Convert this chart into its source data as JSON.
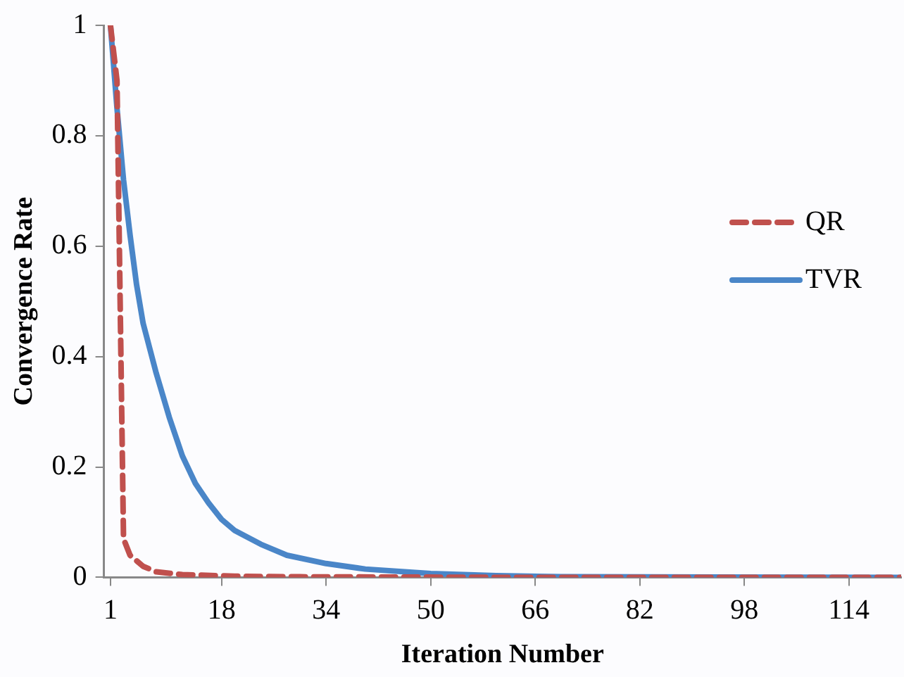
{
  "chart_data": {
    "type": "line",
    "xlabel": "Iteration Number",
    "ylabel": "Convergence Rate",
    "xlim": [
      0,
      122
    ],
    "xticks": [
      1,
      18,
      34,
      50,
      66,
      82,
      98,
      114
    ],
    "ylim": [
      0,
      1
    ],
    "yticks": [
      0,
      0.2,
      0.4,
      0.6,
      0.8,
      1
    ],
    "grid": false,
    "legend": "right",
    "marker": "none",
    "series": [
      {
        "name": "QR",
        "color": "#c0504d",
        "line_style": "dashed",
        "x": [
          1,
          2,
          3,
          4,
          6,
          8,
          12,
          20,
          30,
          60,
          122
        ],
        "values": [
          1,
          0.9,
          0.07,
          0.04,
          0.02,
          0.01,
          0.005,
          0.002,
          0.001,
          0,
          0
        ]
      },
      {
        "name": "TVR",
        "color": "#4a86c8",
        "line_style": "solid",
        "x": [
          1,
          2,
          3,
          4,
          5,
          6,
          8,
          10,
          12,
          14,
          16,
          18,
          20,
          24,
          28,
          34,
          40,
          50,
          60,
          70,
          122
        ],
        "values": [
          1,
          0.85,
          0.72,
          0.62,
          0.53,
          0.46,
          0.37,
          0.29,
          0.22,
          0.17,
          0.135,
          0.105,
          0.085,
          0.06,
          0.04,
          0.025,
          0.015,
          0.007,
          0.003,
          0.001,
          0
        ]
      }
    ]
  }
}
